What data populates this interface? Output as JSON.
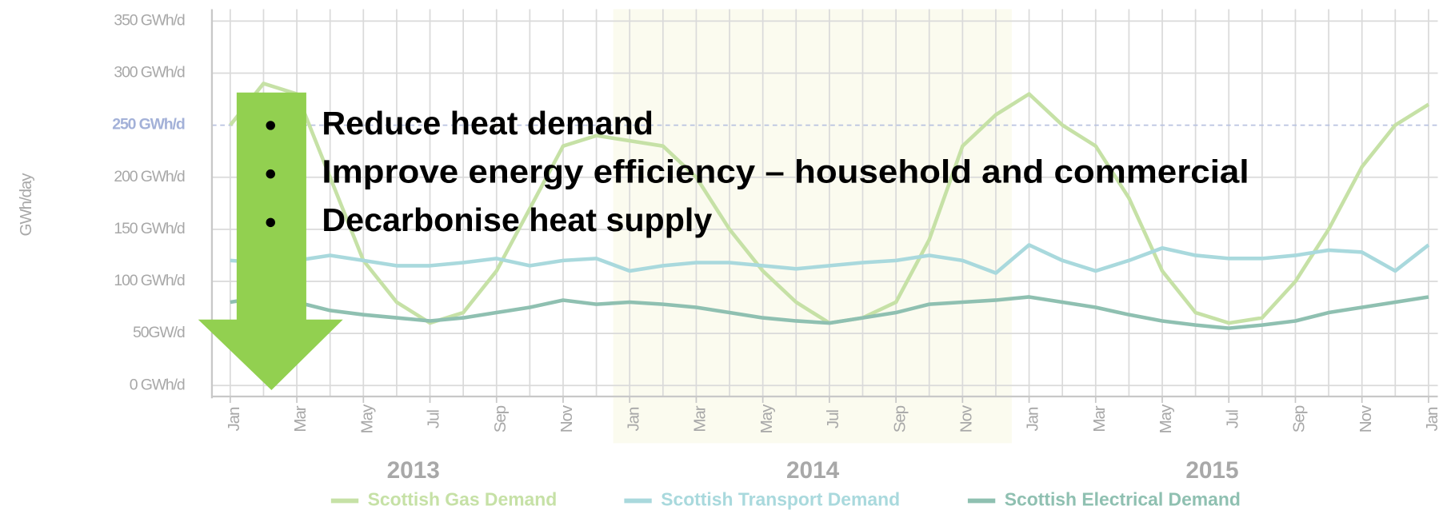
{
  "chart_data": {
    "type": "line",
    "ylabel": "GWh/day",
    "ylim": [
      0,
      350
    ],
    "yticks": [
      {
        "value": 0,
        "label": "0 GWh/d"
      },
      {
        "value": 50,
        "label": "50GW/d"
      },
      {
        "value": 100,
        "label": "100 GWh/d"
      },
      {
        "value": 150,
        "label": "150 GWh/d"
      },
      {
        "value": 200,
        "label": "200 GWh/d"
      },
      {
        "value": 250,
        "label": "250 GWh/d"
      },
      {
        "value": 300,
        "label": "300 GWh/d"
      },
      {
        "value": 350,
        "label": "350 GWh/d"
      }
    ],
    "highlight_ytick": 250,
    "grid": true,
    "x": [
      "2013-01",
      "2013-02",
      "2013-03",
      "2013-04",
      "2013-05",
      "2013-06",
      "2013-07",
      "2013-08",
      "2013-09",
      "2013-10",
      "2013-11",
      "2013-12",
      "2014-01",
      "2014-02",
      "2014-03",
      "2014-04",
      "2014-05",
      "2014-06",
      "2014-07",
      "2014-08",
      "2014-09",
      "2014-10",
      "2014-11",
      "2014-12",
      "2015-01",
      "2015-02",
      "2015-03",
      "2015-04",
      "2015-05",
      "2015-06",
      "2015-07",
      "2015-08",
      "2015-09",
      "2015-10",
      "2015-11",
      "2015-12",
      "2016-01"
    ],
    "xticks": [
      {
        "value": "2013-01",
        "label": "Jan"
      },
      {
        "value": "2013-03",
        "label": "Mar"
      },
      {
        "value": "2013-05",
        "label": "May"
      },
      {
        "value": "2013-07",
        "label": "Jul"
      },
      {
        "value": "2013-09",
        "label": "Sep"
      },
      {
        "value": "2013-11",
        "label": "Nov"
      },
      {
        "value": "2014-01",
        "label": "Jan"
      },
      {
        "value": "2014-03",
        "label": "Mar"
      },
      {
        "value": "2014-05",
        "label": "May"
      },
      {
        "value": "2014-07",
        "label": "Jul"
      },
      {
        "value": "2014-09",
        "label": "Sep"
      },
      {
        "value": "2014-11",
        "label": "Nov"
      },
      {
        "value": "2015-01",
        "label": "Jan"
      },
      {
        "value": "2015-03",
        "label": "Mar"
      },
      {
        "value": "2015-05",
        "label": "May"
      },
      {
        "value": "2015-07",
        "label": "Jul"
      },
      {
        "value": "2015-09",
        "label": "Sep"
      },
      {
        "value": "2015-11",
        "label": "Nov"
      },
      {
        "value": "2016-01",
        "label": "Jan"
      }
    ],
    "years": [
      "2013",
      "2014",
      "2015"
    ],
    "series": [
      {
        "name": "Scottish Gas Demand",
        "color": "#c6e1a6",
        "values": [
          250,
          290,
          280,
          200,
          120,
          80,
          60,
          70,
          110,
          170,
          230,
          240,
          235,
          230,
          200,
          150,
          110,
          80,
          60,
          65,
          80,
          140,
          230,
          260,
          280,
          250,
          230,
          180,
          110,
          70,
          60,
          65,
          100,
          150,
          210,
          250,
          270
        ]
      },
      {
        "name": "Scottish Transport Demand",
        "color": "#a9d9dd",
        "values": [
          120,
          118,
          120,
          125,
          120,
          115,
          115,
          118,
          122,
          115,
          120,
          122,
          110,
          115,
          118,
          118,
          115,
          112,
          115,
          118,
          120,
          125,
          120,
          108,
          135,
          120,
          110,
          120,
          132,
          125,
          122,
          122,
          125,
          130,
          128,
          110,
          135
        ]
      },
      {
        "name": "Scottish Electrical Demand",
        "color": "#8fc0b1",
        "values": [
          80,
          85,
          80,
          72,
          68,
          65,
          62,
          65,
          70,
          75,
          82,
          78,
          80,
          78,
          75,
          70,
          65,
          62,
          60,
          65,
          70,
          78,
          80,
          82,
          85,
          80,
          75,
          68,
          62,
          58,
          55,
          58,
          62,
          70,
          75,
          80,
          85
        ]
      }
    ]
  },
  "bullets": [
    "Reduce heat demand",
    "Improve energy efficiency – household and commercial",
    "Decarbonise heat supply"
  ]
}
